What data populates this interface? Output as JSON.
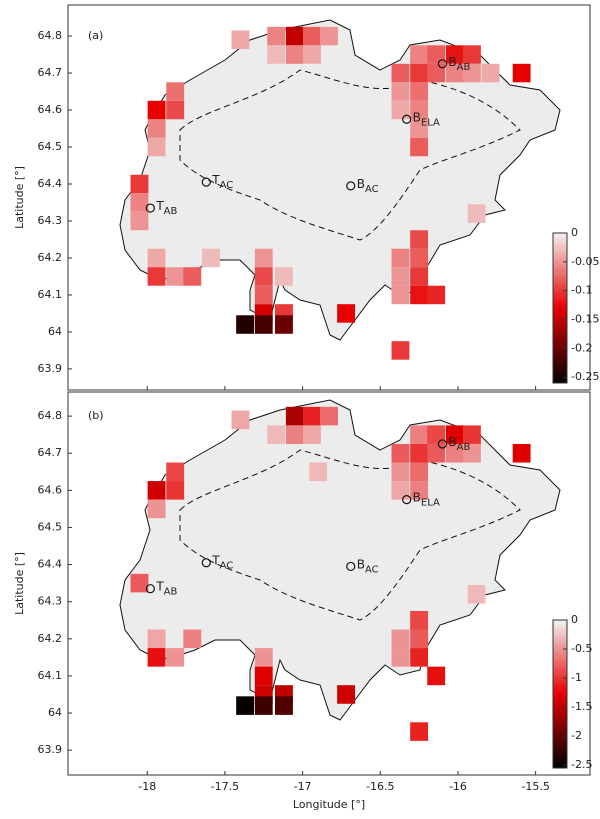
{
  "chart_data": [
    {
      "type": "heatmap",
      "panel_label": "(a)",
      "y_label": "Latitude [°]",
      "xlim": [
        -18.51,
        -15.15
      ],
      "ylim": [
        63.843,
        64.884
      ],
      "xticks": [
        -18,
        -17.5,
        -17,
        -16.5,
        -16,
        -15.5
      ],
      "yticks": [
        63.9,
        64,
        64.1,
        64.2,
        64.3,
        64.4,
        64.5,
        64.6,
        64.7,
        64.8
      ],
      "xtick_labels": false,
      "cell_size": [
        0.115,
        0.05
      ],
      "colormap": [
        "#f2f2f2",
        "#e60000",
        "#000000"
      ],
      "clim": [
        -0.26,
        0
      ],
      "cticks": [
        0,
        -0.05,
        -0.1,
        -0.15,
        -0.2,
        -0.25
      ],
      "cells": {
        "x": [
          -17.4,
          -17.17,
          -17.05,
          -16.94,
          -16.83,
          -17.17,
          -17.05,
          -16.94,
          -16.25,
          -16.14,
          -16.02,
          -15.91,
          -16.37,
          -16.25,
          -16.14,
          -16.02,
          -15.91,
          -15.79,
          -16.37,
          -16.25,
          -15.59,
          -16.37,
          -16.25,
          -16.25,
          -16.25,
          -17.82,
          -17.94,
          -17.82,
          -17.94,
          -17.94,
          -18.05,
          -18.05,
          -18.05,
          -17.94,
          -17.94,
          -17.82,
          -17.71,
          -17.59,
          -17.25,
          -17.25,
          -17.25,
          -17.25,
          -17.12,
          -17.37,
          -17.25,
          -17.12,
          -17.12,
          -16.37,
          -16.25,
          -16.25,
          -16.25,
          -16.25,
          -16.14,
          -16.37,
          -16.37,
          -16.37,
          -16.72,
          -15.88
        ],
        "y": [
          64.79,
          64.8,
          64.8,
          64.8,
          64.8,
          64.75,
          64.75,
          64.75,
          64.75,
          64.75,
          64.75,
          64.75,
          64.7,
          64.7,
          64.7,
          64.7,
          64.7,
          64.7,
          64.65,
          64.65,
          64.7,
          64.6,
          64.6,
          64.55,
          64.5,
          64.65,
          64.6,
          64.6,
          64.55,
          64.5,
          64.4,
          64.35,
          64.3,
          64.2,
          64.15,
          64.15,
          64.15,
          64.2,
          64.2,
          64.15,
          64.1,
          64.05,
          64.05,
          64.02,
          64.02,
          64.02,
          64.15,
          64.2,
          64.25,
          64.2,
          64.15,
          64.1,
          64.1,
          64.15,
          64.1,
          63.95,
          64.05,
          64.32
        ],
        "values": [
          -0.04,
          -0.06,
          -0.15,
          -0.08,
          -0.05,
          -0.03,
          -0.06,
          -0.04,
          -0.06,
          -0.08,
          -0.12,
          -0.1,
          -0.08,
          -0.1,
          -0.08,
          -0.06,
          -0.05,
          -0.04,
          -0.05,
          -0.07,
          -0.13,
          -0.04,
          -0.06,
          -0.05,
          -0.08,
          -0.07,
          -0.13,
          -0.09,
          -0.06,
          -0.04,
          -0.1,
          -0.06,
          -0.05,
          -0.04,
          -0.1,
          -0.05,
          -0.08,
          -0.03,
          -0.05,
          -0.09,
          -0.08,
          -0.14,
          -0.1,
          -0.24,
          -0.22,
          -0.2,
          -0.03,
          -0.06,
          -0.09,
          -0.08,
          -0.1,
          -0.12,
          -0.11,
          -0.05,
          -0.05,
          -0.1,
          -0.13,
          -0.03
        ]
      },
      "stations": [
        {
          "name": "T",
          "sub": "AC",
          "x": -17.62,
          "y": 64.405
        },
        {
          "name": "T",
          "sub": "AB",
          "x": -17.98,
          "y": 64.335
        },
        {
          "name": "B",
          "sub": "AC",
          "x": -16.69,
          "y": 64.395
        },
        {
          "name": "B",
          "sub": "ELA",
          "x": -16.33,
          "y": 64.575
        },
        {
          "name": "B",
          "sub": "AB",
          "x": -16.1,
          "y": 64.725
        }
      ]
    },
    {
      "type": "heatmap",
      "panel_label": "(b)",
      "y_label": "Latitude [°]",
      "x_label": "Longitude [°]",
      "xlim": [
        -18.51,
        -15.15
      ],
      "ylim": [
        63.833,
        64.865
      ],
      "xticks": [
        -18,
        -17.5,
        -17,
        -16.5,
        -16,
        -15.5
      ],
      "yticks": [
        63.9,
        64,
        64.1,
        64.2,
        64.3,
        64.4,
        64.5,
        64.6,
        64.7,
        64.8
      ],
      "xtick_labels": true,
      "cell_size": [
        0.115,
        0.05
      ],
      "colormap": [
        "#f2f2f2",
        "#e60000",
        "#000000"
      ],
      "clim": [
        -2.55,
        0
      ],
      "cticks": [
        0,
        -0.5,
        -1,
        -1.5,
        -2,
        -2.5
      ],
      "cells": {
        "x": [
          -17.4,
          -17.05,
          -16.94,
          -16.83,
          -17.17,
          -17.05,
          -16.94,
          -16.25,
          -16.14,
          -16.02,
          -15.91,
          -16.37,
          -16.25,
          -16.14,
          -16.02,
          -15.91,
          -16.37,
          -16.25,
          -15.59,
          -16.37,
          -16.25,
          -17.82,
          -17.94,
          -17.82,
          -17.94,
          -18.05,
          -17.94,
          -17.94,
          -17.82,
          -17.71,
          -17.25,
          -17.25,
          -17.25,
          -17.12,
          -17.37,
          -17.25,
          -17.12,
          -16.37,
          -16.25,
          -16.25,
          -16.25,
          -16.14,
          -16.37,
          -16.25,
          -16.72,
          -15.88,
          -16.9
        ],
        "y": [
          64.79,
          64.8,
          64.8,
          64.8,
          64.75,
          64.75,
          64.75,
          64.75,
          64.75,
          64.75,
          64.75,
          64.7,
          64.7,
          64.7,
          64.7,
          64.7,
          64.65,
          64.65,
          64.7,
          64.6,
          64.6,
          64.65,
          64.6,
          64.6,
          64.55,
          64.35,
          64.2,
          64.15,
          64.15,
          64.2,
          64.15,
          64.1,
          64.05,
          64.05,
          64.02,
          64.02,
          64.02,
          64.2,
          64.25,
          64.2,
          64.15,
          64.1,
          64.15,
          63.95,
          64.05,
          64.32,
          64.65
        ],
        "values": [
          -0.4,
          -1.6,
          -1.1,
          -0.7,
          -0.3,
          -0.6,
          -0.4,
          -0.6,
          -0.9,
          -1.3,
          -1.0,
          -0.8,
          -1.0,
          -0.8,
          -0.6,
          -0.5,
          -0.5,
          -0.7,
          -1.3,
          -0.4,
          -0.6,
          -0.9,
          -1.4,
          -1.0,
          -0.5,
          -0.8,
          -0.4,
          -1.2,
          -0.5,
          -0.6,
          -0.5,
          -1.3,
          -1.4,
          -1.5,
          -2.5,
          -2.2,
          -2.1,
          -0.5,
          -0.9,
          -0.8,
          -1.1,
          -1.2,
          -0.5,
          -1.1,
          -1.4,
          -0.3,
          -0.3
        ]
      },
      "stations": [
        {
          "name": "T",
          "sub": "AC",
          "x": -17.62,
          "y": 64.405
        },
        {
          "name": "T",
          "sub": "AB",
          "x": -17.98,
          "y": 64.335
        },
        {
          "name": "B",
          "sub": "AC",
          "x": -16.69,
          "y": 64.395
        },
        {
          "name": "B",
          "sub": "ELA",
          "x": -16.33,
          "y": 64.575
        },
        {
          "name": "B",
          "sub": "AB",
          "x": -16.1,
          "y": 64.725
        }
      ]
    }
  ]
}
